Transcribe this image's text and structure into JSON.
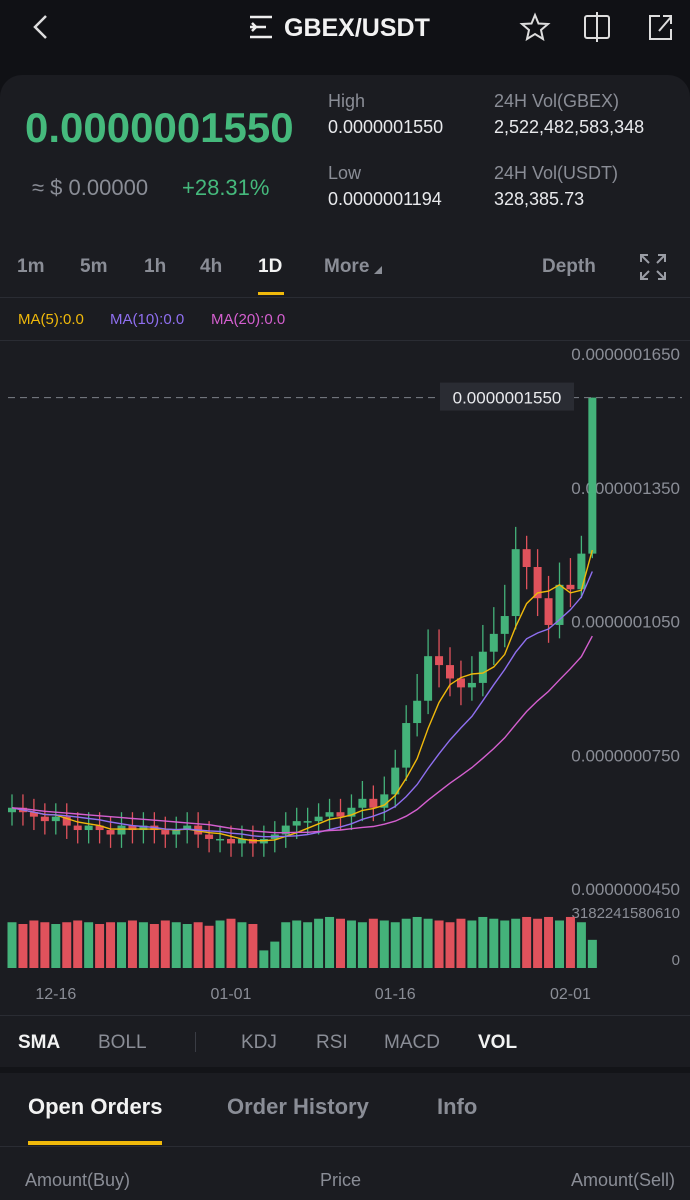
{
  "header": {
    "title": "GBEX/USDT"
  },
  "ticker": {
    "price": "0.0000001550",
    "fiat": "≈ $ 0.00000",
    "change": "+28.31%",
    "high_label": "High",
    "high": "0.0000001550",
    "low_label": "Low",
    "low": "0.0000001194",
    "vol_base_label": "24H Vol(GBEX)",
    "vol_base": "2,522,482,583,348",
    "vol_quote_label": "24H Vol(USDT)",
    "vol_quote": "328,385.73"
  },
  "intervals": {
    "items": [
      "1m",
      "5m",
      "1h",
      "4h",
      "1D",
      "More"
    ],
    "active": 4,
    "depth": "Depth"
  },
  "chart_data": {
    "type": "candlestick",
    "categories": [
      null,
      null,
      null,
      null,
      "12-16",
      null,
      null,
      null,
      null,
      null,
      null,
      null,
      null,
      null,
      null,
      null,
      null,
      null,
      null,
      null,
      "01-01",
      null,
      null,
      null,
      null,
      null,
      null,
      null,
      null,
      null,
      null,
      null,
      null,
      null,
      null,
      "01-16",
      null,
      null,
      null,
      null,
      null,
      null,
      null,
      null,
      null,
      null,
      null,
      null,
      null,
      null,
      null,
      "02-01",
      null,
      null
    ],
    "open": [
      6.2e-08,
      6.3e-08,
      6.2e-08,
      6.1e-08,
      6e-08,
      6.1e-08,
      5.9e-08,
      5.8e-08,
      5.9e-08,
      5.8e-08,
      5.7e-08,
      5.9e-08,
      5.8e-08,
      5.9e-08,
      5.8e-08,
      5.7e-08,
      5.8e-08,
      5.9e-08,
      5.7e-08,
      5.6e-08,
      5.6e-08,
      5.5e-08,
      5.6e-08,
      5.5e-08,
      5.6e-08,
      5.7e-08,
      5.9e-08,
      6e-08,
      6e-08,
      6.1e-08,
      6.2e-08,
      6.1e-08,
      6.3e-08,
      6.5e-08,
      6.3e-08,
      6.6e-08,
      7.2e-08,
      8.2e-08,
      8.7e-08,
      9.7e-08,
      9.5e-08,
      9.2e-08,
      9e-08,
      9.1e-08,
      9.8e-08,
      1.02e-07,
      1.06e-07,
      1.21e-07,
      1.17e-07,
      1.1e-07,
      1.04e-07,
      1.13e-07,
      1.12e-07,
      1.2e-07
    ],
    "high": [
      6.6e-08,
      6.6e-08,
      6.5e-08,
      6.4e-08,
      6.4e-08,
      6.4e-08,
      6.2e-08,
      6.2e-08,
      6.2e-08,
      6.1e-08,
      6.2e-08,
      6.2e-08,
      6.2e-08,
      6.2e-08,
      6.1e-08,
      6.1e-08,
      6.2e-08,
      6.2e-08,
      6e-08,
      5.9e-08,
      5.9e-08,
      5.9e-08,
      5.9e-08,
      5.9e-08,
      6e-08,
      6.2e-08,
      6.3e-08,
      6.3e-08,
      6.4e-08,
      6.5e-08,
      6.5e-08,
      6.6e-08,
      6.9e-08,
      6.8e-08,
      7e-08,
      7.6e-08,
      8.6e-08,
      9.3e-08,
      1.03e-07,
      1.03e-07,
      9.9e-08,
      9.6e-08,
      9.7e-08,
      1.04e-07,
      1.08e-07,
      1.13e-07,
      1.26e-07,
      1.24e-07,
      1.21e-07,
      1.15e-07,
      1.18e-07,
      1.19e-07,
      1.24e-07,
      1.55e-07
    ],
    "low": [
      5.9e-08,
      5.9e-08,
      5.8e-08,
      5.7e-08,
      5.7e-08,
      5.6e-08,
      5.5e-08,
      5.5e-08,
      5.5e-08,
      5.4e-08,
      5.4e-08,
      5.5e-08,
      5.5e-08,
      5.5e-08,
      5.4e-08,
      5.4e-08,
      5.5e-08,
      5.4e-08,
      5.3e-08,
      5.3e-08,
      5.2e-08,
      5.2e-08,
      5.2e-08,
      5.2e-08,
      5.3e-08,
      5.4e-08,
      5.6e-08,
      5.7e-08,
      5.7e-08,
      5.8e-08,
      5.8e-08,
      5.8e-08,
      6e-08,
      6e-08,
      6e-08,
      6.3e-08,
      6.9e-08,
      7.9e-08,
      8.4e-08,
      9e-08,
      8.8e-08,
      8.6e-08,
      8.7e-08,
      8.8e-08,
      9.5e-08,
      9.9e-08,
      1.03e-07,
      1.12e-07,
      1.06e-07,
      1e-07,
      1.01e-07,
      1.08e-07,
      1.1e-07,
      1.19e-07
    ],
    "close": [
      6.3e-08,
      6.2e-08,
      6.1e-08,
      6e-08,
      6.1e-08,
      5.9e-08,
      5.8e-08,
      5.9e-08,
      5.8e-08,
      5.7e-08,
      5.9e-08,
      5.8e-08,
      5.9e-08,
      5.8e-08,
      5.7e-08,
      5.8e-08,
      5.9e-08,
      5.7e-08,
      5.6e-08,
      5.6e-08,
      5.5e-08,
      5.6e-08,
      5.5e-08,
      5.6e-08,
      5.7e-08,
      5.9e-08,
      6e-08,
      6e-08,
      6.1e-08,
      6.2e-08,
      6.1e-08,
      6.3e-08,
      6.5e-08,
      6.3e-08,
      6.6e-08,
      7.2e-08,
      8.2e-08,
      8.7e-08,
      9.7e-08,
      9.5e-08,
      9.2e-08,
      9e-08,
      9.1e-08,
      9.8e-08,
      1.02e-07,
      1.06e-07,
      1.21e-07,
      1.17e-07,
      1.1e-07,
      1.04e-07,
      1.13e-07,
      1.12e-07,
      1.2e-07,
      1.55e-07
    ],
    "up_color": "#44b27a",
    "down_color": "#e0525c",
    "series": [
      {
        "name": "MA(5):0.0",
        "color": "#f0b90b",
        "values": [
          6.3e-08,
          6.25e-08,
          6.2e-08,
          6.15e-08,
          6.14e-08,
          6.06e-08,
          5.98e-08,
          5.94e-08,
          5.9e-08,
          5.82e-08,
          5.82e-08,
          5.82e-08,
          5.82e-08,
          5.82e-08,
          5.82e-08,
          5.8e-08,
          5.82e-08,
          5.78e-08,
          5.74e-08,
          5.72e-08,
          5.66e-08,
          5.6e-08,
          5.56e-08,
          5.56e-08,
          5.58e-08,
          5.66e-08,
          5.74e-08,
          5.84e-08,
          5.94e-08,
          6.04e-08,
          6.08e-08,
          6.14e-08,
          6.24e-08,
          6.28e-08,
          6.36e-08,
          6.58e-08,
          6.96e-08,
          7.4e-08,
          8.08e-08,
          8.66e-08,
          9.06e-08,
          9.22e-08,
          9.3e-08,
          9.32e-08,
          9.46e-08,
          9.74e-08,
          1.036e-07,
          1.088e-07,
          1.112e-07,
          1.116e-07,
          1.13e-07,
          1.112e-07,
          1.118e-07,
          1.208e-07
        ]
      },
      {
        "name": "MA(10):0.0",
        "color": "#8f6ff0",
        "values": [
          6.3e-08,
          6.25e-08,
          6.2e-08,
          6.15e-08,
          6.14e-08,
          6.12e-08,
          6.09e-08,
          6.06e-08,
          6.03e-08,
          5.98e-08,
          5.94e-08,
          5.9e-08,
          5.88e-08,
          5.86e-08,
          5.82e-08,
          5.81e-08,
          5.82e-08,
          5.8e-08,
          5.78e-08,
          5.77e-08,
          5.73e-08,
          5.71e-08,
          5.67e-08,
          5.65e-08,
          5.65e-08,
          5.66e-08,
          5.67e-08,
          5.7e-08,
          5.75e-08,
          5.81e-08,
          5.87e-08,
          5.94e-08,
          6.04e-08,
          6.11e-08,
          6.2e-08,
          6.33e-08,
          6.55e-08,
          6.82e-08,
          7.18e-08,
          7.51e-08,
          7.82e-08,
          8.09e-08,
          8.35e-08,
          8.7e-08,
          9.06e-08,
          9.4e-08,
          9.79e-08,
          1.009e-07,
          1.022e-07,
          1.031e-07,
          1.052e-07,
          1.074e-07,
          1.103e-07,
          1.16e-07
        ]
      },
      {
        "name": "MA(20):0.0",
        "color": "#d45fcf",
        "values": [
          6.3e-08,
          6.28e-08,
          6.25e-08,
          6.22e-08,
          6.2e-08,
          6.18e-08,
          6.16e-08,
          6.14e-08,
          6.12e-08,
          6.1e-08,
          6.08e-08,
          6.06e-08,
          6.04e-08,
          6.02e-08,
          6e-08,
          5.98e-08,
          5.96e-08,
          5.94e-08,
          5.92e-08,
          5.88e-08,
          5.84e-08,
          5.81e-08,
          5.78e-08,
          5.76e-08,
          5.74e-08,
          5.74e-08,
          5.75e-08,
          5.75e-08,
          5.77e-08,
          5.79e-08,
          5.8e-08,
          5.83e-08,
          5.86e-08,
          5.88e-08,
          5.93e-08,
          6e-08,
          6.11e-08,
          6.26e-08,
          6.47e-08,
          6.66e-08,
          6.85e-08,
          7.02e-08,
          7.2e-08,
          7.41e-08,
          7.63e-08,
          7.87e-08,
          8.17e-08,
          8.46e-08,
          8.7e-08,
          8.91e-08,
          9.17e-08,
          9.42e-08,
          9.69e-08,
          1.015e-07
        ]
      }
    ],
    "ylim": [
      4.5e-08,
      1.65e-07
    ],
    "yticks": [
      {
        "value": 4.5e-08,
        "label": "0.0000000450"
      },
      {
        "value": 7.5e-08,
        "label": "0.0000000750"
      },
      {
        "value": 1.05e-07,
        "label": "0.0000001050"
      },
      {
        "value": 1.35e-07,
        "label": "0.0000001350"
      },
      {
        "value": 1.65e-07,
        "label": "0.0000001650"
      }
    ],
    "last_price": {
      "value": 1.55e-07,
      "label": "0.0000001550"
    },
    "volume": {
      "values": [
        2600000000000.0,
        2500000000000.0,
        2700000000000.0,
        2600000000000.0,
        2500000000000.0,
        2600000000000.0,
        2700000000000.0,
        2600000000000.0,
        2500000000000.0,
        2600000000000.0,
        2600000000000.0,
        2700000000000.0,
        2600000000000.0,
        2500000000000.0,
        2700000000000.0,
        2600000000000.0,
        2500000000000.0,
        2600000000000.0,
        2400000000000.0,
        2700000000000.0,
        2800000000000.0,
        2600000000000.0,
        2500000000000.0,
        1000000000000.0,
        1500000000000.0,
        2600000000000.0,
        2700000000000.0,
        2600000000000.0,
        2800000000000.0,
        2900000000000.0,
        2800000000000.0,
        2700000000000.0,
        2600000000000.0,
        2800000000000.0,
        2700000000000.0,
        2600000000000.0,
        2800000000000.0,
        2900000000000.0,
        2800000000000.0,
        2700000000000.0,
        2600000000000.0,
        2800000000000.0,
        2700000000000.0,
        2900000000000.0,
        2800000000000.0,
        2700000000000.0,
        2800000000000.0,
        2900000000000.0,
        2800000000000.0,
        2900000000000.0,
        2700000000000.0,
        2900000000000.0,
        2600000000000.0,
        1600000000000.0
      ],
      "ylim": [
        0,
        3182241580610
      ],
      "yticks": [
        0,
        3182241580610
      ]
    }
  },
  "indicators": {
    "items": [
      "SMA",
      "BOLL",
      "KDJ",
      "RSI",
      "MACD",
      "VOL"
    ],
    "active": [
      0,
      5
    ]
  },
  "order_tabs": {
    "items": [
      "Open Orders",
      "Order History",
      "Info"
    ],
    "active": 0
  },
  "order_columns": [
    "Amount(Buy)",
    "Price",
    "Amount(Sell)"
  ]
}
